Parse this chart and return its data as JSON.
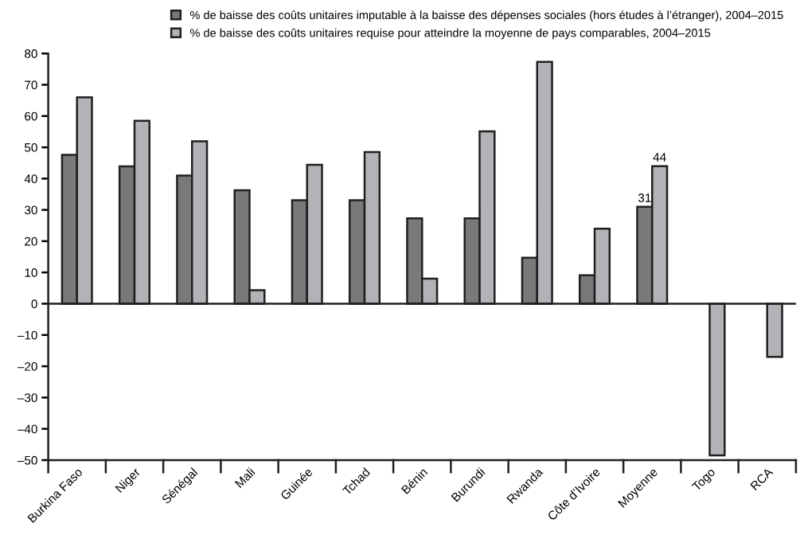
{
  "chart_data": {
    "type": "bar",
    "categories": [
      "Burkina Faso",
      "Niger",
      "Sénégal",
      "Mali",
      "Guinée",
      "Tchad",
      "Bénin",
      "Burundi",
      "Rwanda",
      "Côte d’Ivoire",
      "Moyenne",
      "Togo",
      "RCA"
    ],
    "series": [
      {
        "name": "% de baisse des coûts unitaires imputable à la baisse des dépenses sociales (hors études à l’étranger), 2004–2015",
        "color": "#78797b",
        "values": [
          47.6,
          43.9,
          41.0,
          36.3,
          33.1,
          33.1,
          27.3,
          27.3,
          14.7,
          9.1,
          31,
          null,
          null
        ],
        "value_labels": [
          null,
          null,
          null,
          null,
          null,
          null,
          null,
          null,
          null,
          null,
          "31",
          null,
          null
        ]
      },
      {
        "name": "% de baisse des coûts unitaires requise pour atteindre la moyenne de pays comparables, 2004–2015",
        "color": "#b1b3b6",
        "values": [
          66.0,
          58.5,
          51.9,
          4.3,
          44.4,
          48.5,
          8.0,
          55.1,
          77.3,
          24.0,
          44,
          -48.5,
          -17.0
        ],
        "value_labels": [
          null,
          null,
          null,
          null,
          null,
          null,
          null,
          null,
          null,
          null,
          "44",
          null,
          null
        ]
      }
    ],
    "ylim": [
      -50,
      80
    ],
    "yticks": [
      {
        "value": -50,
        "label": "–50"
      },
      {
        "value": -40,
        "label": "–40"
      },
      {
        "value": -30,
        "label": "–30"
      },
      {
        "value": -20,
        "label": "–20"
      },
      {
        "value": -10,
        "label": "–10"
      },
      0,
      10,
      20,
      30,
      40,
      50,
      60,
      70,
      80
    ],
    "ref_lines": [
      {
        "axis": "y",
        "value": 0,
        "color": "#231f20"
      }
    ],
    "grid": false,
    "legend": "top"
  }
}
